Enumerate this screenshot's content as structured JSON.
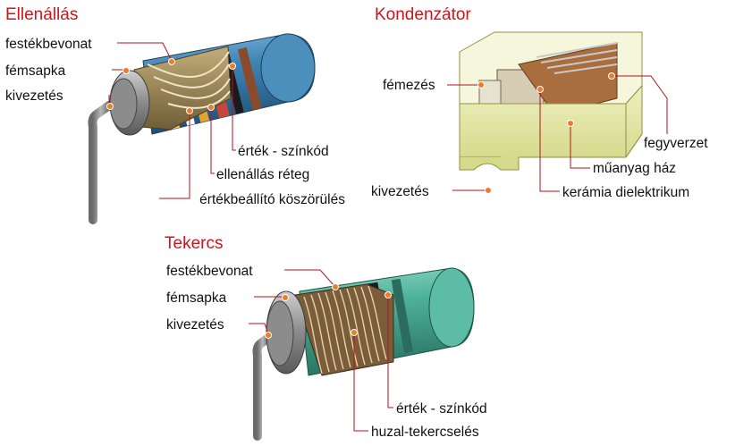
{
  "resistor": {
    "title": "Ellenállás",
    "labels": {
      "paint": "festékbevonat",
      "cap": "fémsapka",
      "lead": "kivezetés",
      "code": "érték - színkód",
      "layer": "ellenállás réteg",
      "groove": "értékbeállító köszörülés"
    },
    "colors": {
      "body": "#3f86b6",
      "film": "#9b8556"
    }
  },
  "capacitor": {
    "title": "Kondenzátor",
    "labels": {
      "metal": "fémezés",
      "plates": "fegyverzet",
      "housing": "műanyag ház",
      "lead": "kivezetés",
      "dielectric": "kerámia dielektrikum"
    },
    "colors": {
      "housing": "#e3e6a0",
      "dielectric": "#a96d3e"
    }
  },
  "coil": {
    "title": "Tekercs",
    "labels": {
      "paint": "festékbevonat",
      "cap": "fémsapka",
      "lead": "kivezetés",
      "code": "érték - színkód",
      "winding": "huzal-tekercselés"
    },
    "colors": {
      "body": "#4fb39d",
      "wire": "#a37f55"
    }
  },
  "style": {
    "title_color": "#c8171e",
    "leader_color": "#b5121b",
    "dot_color": "#f07a2a"
  }
}
